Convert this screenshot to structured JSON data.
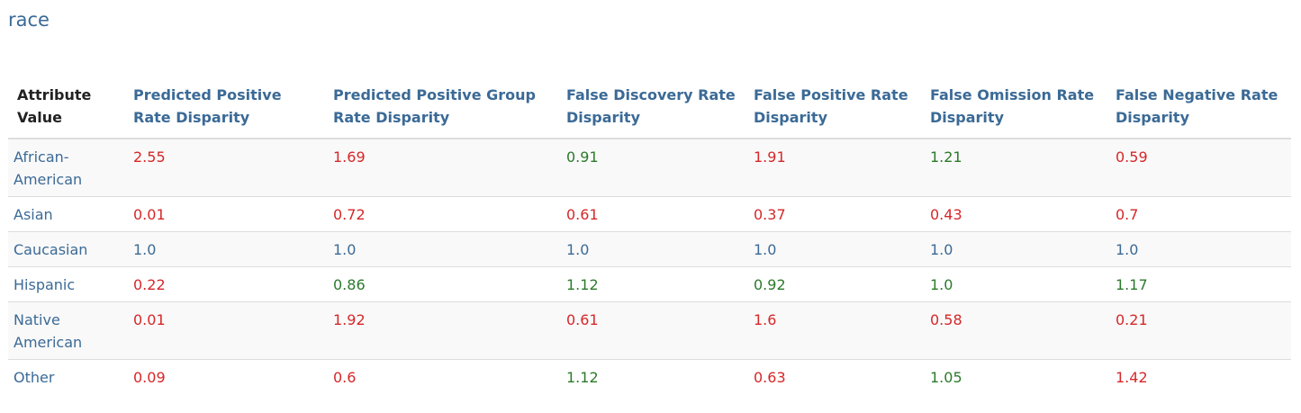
{
  "title": "race",
  "colors": {
    "reference": "#3b6a96",
    "fail": "#d62728",
    "pass": "#2b7a2b",
    "header": "#3b6a96"
  },
  "table": {
    "headers": [
      "Attribute Value",
      "Predicted Positive Rate Disparity",
      "Predicted Positive Group Rate Disparity",
      "False Discovery Rate Disparity",
      "False Positive Rate Disparity",
      "False Omission Rate Disparity",
      "False Negative Rate Disparity"
    ],
    "rows": [
      {
        "attribute": "African-American",
        "values": [
          {
            "value": "2.55",
            "status": "red"
          },
          {
            "value": "1.69",
            "status": "red"
          },
          {
            "value": "0.91",
            "status": "green"
          },
          {
            "value": "1.91",
            "status": "red"
          },
          {
            "value": "1.21",
            "status": "green"
          },
          {
            "value": "0.59",
            "status": "red"
          }
        ]
      },
      {
        "attribute": "Asian",
        "values": [
          {
            "value": "0.01",
            "status": "red"
          },
          {
            "value": "0.72",
            "status": "red"
          },
          {
            "value": "0.61",
            "status": "red"
          },
          {
            "value": "0.37",
            "status": "red"
          },
          {
            "value": "0.43",
            "status": "red"
          },
          {
            "value": "0.7",
            "status": "red"
          }
        ]
      },
      {
        "attribute": "Caucasian",
        "values": [
          {
            "value": "1.0",
            "status": "blue"
          },
          {
            "value": "1.0",
            "status": "blue"
          },
          {
            "value": "1.0",
            "status": "blue"
          },
          {
            "value": "1.0",
            "status": "blue"
          },
          {
            "value": "1.0",
            "status": "blue"
          },
          {
            "value": "1.0",
            "status": "blue"
          }
        ]
      },
      {
        "attribute": "Hispanic",
        "values": [
          {
            "value": "0.22",
            "status": "red"
          },
          {
            "value": "0.86",
            "status": "green"
          },
          {
            "value": "1.12",
            "status": "green"
          },
          {
            "value": "0.92",
            "status": "green"
          },
          {
            "value": "1.0",
            "status": "green"
          },
          {
            "value": "1.17",
            "status": "green"
          }
        ]
      },
      {
        "attribute": "Native American",
        "values": [
          {
            "value": "0.01",
            "status": "red"
          },
          {
            "value": "1.92",
            "status": "red"
          },
          {
            "value": "0.61",
            "status": "red"
          },
          {
            "value": "1.6",
            "status": "red"
          },
          {
            "value": "0.58",
            "status": "red"
          },
          {
            "value": "0.21",
            "status": "red"
          }
        ]
      },
      {
        "attribute": "Other",
        "values": [
          {
            "value": "0.09",
            "status": "red"
          },
          {
            "value": "0.6",
            "status": "red"
          },
          {
            "value": "1.12",
            "status": "green"
          },
          {
            "value": "0.63",
            "status": "red"
          },
          {
            "value": "1.05",
            "status": "green"
          },
          {
            "value": "1.42",
            "status": "red"
          }
        ]
      }
    ]
  }
}
